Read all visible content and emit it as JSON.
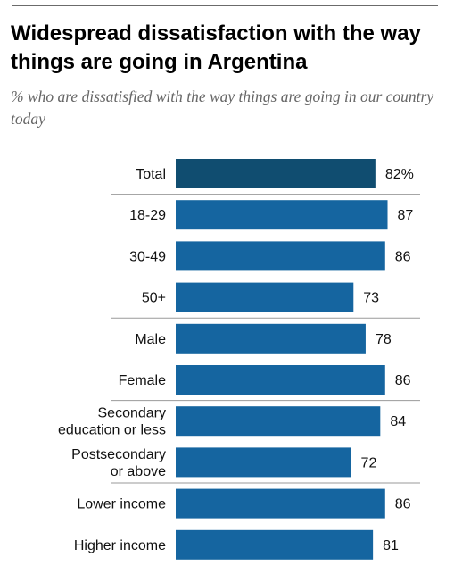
{
  "title": "Widespread dissatisfaction with the way things are going in Argentina",
  "subtitle": {
    "before": "% who are ",
    "emphasis": "dissatisfied",
    "after": " with the way things are going in our country today"
  },
  "colors": {
    "total_bar": "#104d70",
    "bar": "#1565a0",
    "divider": "#9a9a9a"
  },
  "chart_data": {
    "type": "bar",
    "orientation": "horizontal",
    "categories": [
      "Total",
      "18-29",
      "30-49",
      "50+",
      "Male",
      "Female",
      "Secondary education or less",
      "Postsecondary or above",
      "Lower income",
      "Higher income"
    ],
    "category_lines": [
      [
        "Total"
      ],
      [
        "18-29"
      ],
      [
        "30-49"
      ],
      [
        "50+"
      ],
      [
        "Male"
      ],
      [
        "Female"
      ],
      [
        "Secondary",
        "education or less"
      ],
      [
        "Postsecondary",
        "or above"
      ],
      [
        "Lower income"
      ],
      [
        "Higher income"
      ]
    ],
    "values": [
      82,
      87,
      86,
      73,
      78,
      86,
      84,
      72,
      86,
      81
    ],
    "value_labels": [
      "82%",
      "87",
      "86",
      "73",
      "78",
      "86",
      "84",
      "72",
      "86",
      "81"
    ],
    "group_breaks_after": [
      0,
      3,
      5,
      7
    ],
    "xlim": [
      0,
      100
    ],
    "grid": false,
    "legend": "none"
  }
}
